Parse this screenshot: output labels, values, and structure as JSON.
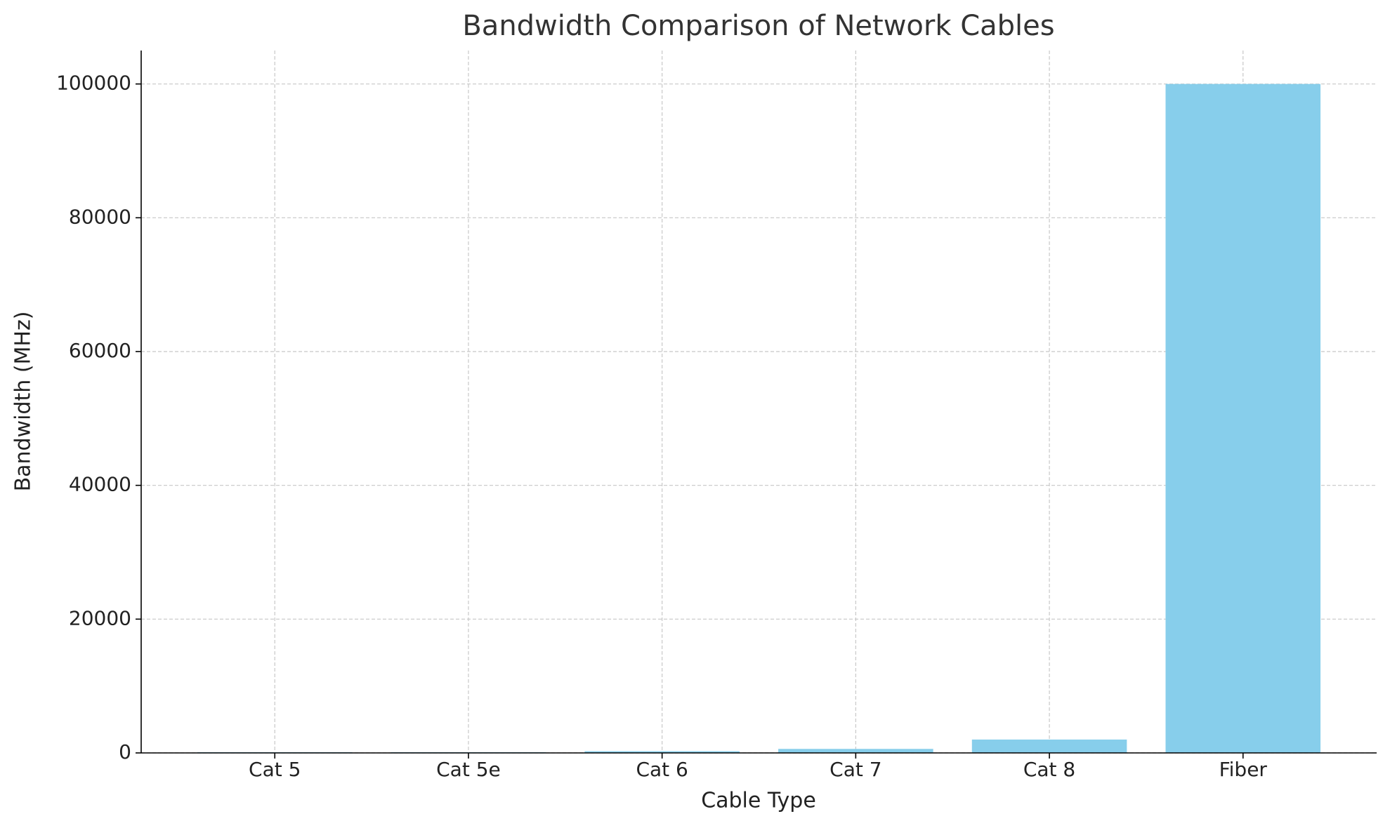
{
  "chart_data": {
    "type": "bar",
    "title": "Bandwidth Comparison of Network Cables",
    "x_label": "Cable Type",
    "y_label": "Bandwidth (MHz)",
    "categories": [
      "Cat 5",
      "Cat 5e",
      "Cat 6",
      "Cat 7",
      "Cat 8",
      "Fiber"
    ],
    "values": [
      100,
      100,
      250,
      600,
      2000,
      100000
    ],
    "color": "#87ceeb",
    "ylim": [
      0,
      105000
    ],
    "yticks": [
      0,
      20000,
      40000,
      60000,
      80000,
      100000
    ],
    "grid": true
  }
}
